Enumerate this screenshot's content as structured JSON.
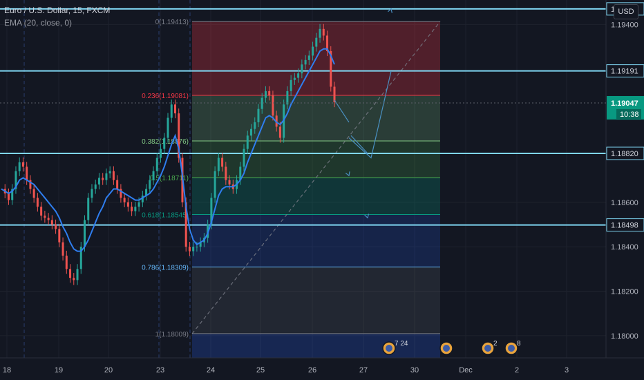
{
  "header": {
    "symbol": "Euro / U.S. Dollar, 15, FXCM",
    "indicator": "EMA (20, close, 0)",
    "currency": "USD"
  },
  "chart_data": {
    "type": "line",
    "ylim": [
      1.179,
      1.1951
    ],
    "x_ticks": [
      "18",
      "19",
      "20",
      "23",
      "24",
      "25",
      "26",
      "27",
      "30",
      "Dec",
      "2",
      "3"
    ],
    "y_ticks": [
      "1.19400",
      "1.18600",
      "1.18400",
      "1.18200",
      "1.18000"
    ],
    "horizontal_levels": [
      {
        "label": "1.19470",
        "value": 1.1947
      },
      {
        "label": "1.19191",
        "value": 1.19191
      },
      {
        "label": "1.18820",
        "value": 1.1882
      },
      {
        "label": "1.18498",
        "value": 1.18498
      }
    ],
    "price_label": {
      "value": "1.19047",
      "time": "10:38"
    },
    "fib_levels": [
      {
        "label": "0(1.19413)",
        "value": 1.19413,
        "color": "#787b86"
      },
      {
        "label": "0.236(1.19081)",
        "value": 1.19081,
        "color": "#f23645"
      },
      {
        "label": "0.382(1.18876)",
        "value": 1.18876,
        "color": "#81c784"
      },
      {
        "label": "0.5(1.18711)",
        "value": 1.18711,
        "color": "#4caf50"
      },
      {
        "label": "0.618(1.18545)",
        "value": 1.18545,
        "color": "#089981"
      },
      {
        "label": "0.786(1.18309)",
        "value": 1.18309,
        "color": "#64b5f6"
      },
      {
        "label": "1(1.18009)",
        "value": 1.18009,
        "color": "#787b86"
      }
    ],
    "price_path": [
      1.1866,
      1.1864,
      1.1861,
      1.1866,
      1.1874,
      1.1878,
      1.1876,
      1.187,
      1.1866,
      1.1862,
      1.1858,
      1.1854,
      1.1853,
      1.1852,
      1.185,
      1.1848,
      1.1842,
      1.1836,
      1.183,
      1.1826,
      1.1825,
      1.183,
      1.184,
      1.1852,
      1.1862,
      1.1866,
      1.1868,
      1.1871,
      1.187,
      1.1873,
      1.1874,
      1.187,
      1.1866,
      1.1862,
      1.186,
      1.1858,
      1.1856,
      1.1858,
      1.186,
      1.1863,
      1.1866,
      1.187,
      1.1874,
      1.188,
      1.1884,
      1.1889,
      1.1898,
      1.1904,
      1.19,
      1.188,
      1.186,
      1.184,
      1.1838,
      1.184,
      1.184,
      1.1842,
      1.1844,
      1.185,
      1.1862,
      1.1874,
      1.188,
      1.1876,
      1.187,
      1.1868,
      1.1866,
      1.187,
      1.1876,
      1.1884,
      1.189,
      1.1893,
      1.1896,
      1.1902,
      1.1907,
      1.191,
      1.1908,
      1.1899,
      1.1894,
      1.1889,
      1.1904,
      1.191,
      1.1915,
      1.1916,
      1.1918,
      1.1922,
      1.1924,
      1.1926,
      1.193,
      1.1934,
      1.1938,
      1.1935,
      1.1928,
      1.1912,
      1.1905
    ],
    "ema_path": [
      1.1866,
      1.1865,
      1.1864,
      1.1865,
      1.1867,
      1.187,
      1.1871,
      1.187,
      1.1869,
      1.1868,
      1.1866,
      1.1864,
      1.1862,
      1.186,
      1.1858,
      1.1856,
      1.1853,
      1.1849,
      1.1846,
      1.1842,
      1.1839,
      1.1838,
      1.1838,
      1.184,
      1.1843,
      1.1847,
      1.1851,
      1.1855,
      1.1858,
      1.1862,
      1.1864,
      1.1866,
      1.1866,
      1.1865,
      1.1864,
      1.1863,
      1.1862,
      1.1861,
      1.1861,
      1.1862,
      1.1863,
      1.1864,
      1.1866,
      1.1869,
      1.1872,
      1.1876,
      1.1881,
      1.1886,
      1.189,
      1.1884,
      1.1872,
      1.1858,
      1.1848,
      1.1843,
      1.1841,
      1.1842,
      1.1843,
      1.1846,
      1.1851,
      1.1857,
      1.1863,
      1.1866,
      1.1867,
      1.1867,
      1.1867,
      1.1868,
      1.187,
      1.1873,
      1.1878,
      1.1882,
      1.1886,
      1.189,
      1.1894,
      1.1898,
      1.1899,
      1.1898,
      1.1896,
      1.1895,
      1.1897,
      1.19,
      1.1904,
      1.1907,
      1.191,
      1.1913,
      1.1916,
      1.1919,
      1.1922,
      1.1925,
      1.1928,
      1.1929,
      1.1929,
      1.1926,
      1.1922
    ],
    "projection_paths": [
      [
        [
          1.1906,
          1.1896
        ],
        [
          1.1889,
          1.1872
        ]
      ],
      [
        [
          1.1889,
          1.188
        ],
        [
          1.1889,
          1.1919
        ],
        [
          1.1919,
          1.1947
        ]
      ],
      [
        [
          1.189,
          1.1882
        ],
        [
          1.1879,
          1.1853
        ]
      ]
    ],
    "event_markers": [
      {
        "label": "7 24",
        "flags": 2
      },
      {
        "label": "",
        "flags": 1
      },
      {
        "label": "2",
        "flags": 3
      },
      {
        "label": "8",
        "flags": 1
      }
    ]
  }
}
